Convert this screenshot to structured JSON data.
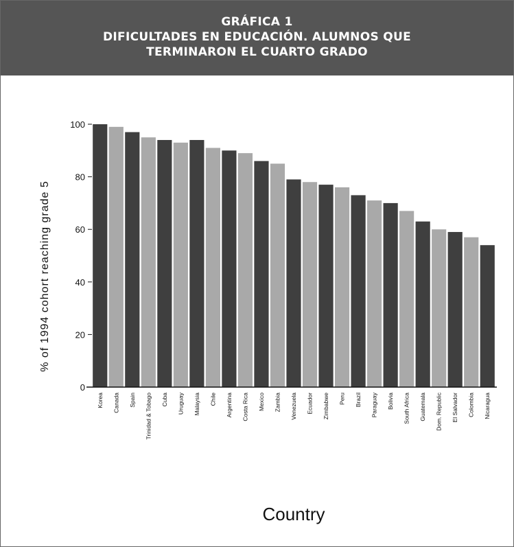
{
  "title_lines": [
    "GRÁFICA 1",
    "DIFICULTADES EN EDUCACIÓN. ALUMNOS QUE",
    "TERMINARON EL CUARTO GRADO"
  ],
  "colors": {
    "header_bg": "#555555",
    "bar_dark": "#3f3f3f",
    "bar_light": "#a9a9a9"
  },
  "chart_data": {
    "type": "bar",
    "title": "GRÁFICA 1 DIFICULTADES EN EDUCACIÓN. ALUMNOS QUE TERMINARON EL CUARTO GRADO",
    "xlabel": "Country",
    "ylabel": "% of 1994 cohort reaching grade 5",
    "ylim": [
      0,
      100
    ],
    "yticks": [
      0,
      20,
      40,
      60,
      80,
      100
    ],
    "grid": false,
    "categories": [
      "Korea",
      "Canada",
      "Spain",
      "Trinidad & Tobago",
      "Cuba",
      "Uruguay",
      "Malaysia",
      "Chile",
      "Argentina",
      "Costa Rica",
      "Mexico",
      "Zambia",
      "Venezuela",
      "Ecuador",
      "Zimbabwe",
      "Peru",
      "Brazil",
      "Paraguay",
      "Bolivia",
      "South Africa",
      "Guatemala",
      "Dom. Republic",
      "El Salvador",
      "Colombia",
      "Nicaragua"
    ],
    "values": [
      100,
      99,
      97,
      95,
      94,
      93,
      94,
      91,
      90,
      89,
      86,
      85,
      79,
      78,
      77,
      76,
      73,
      71,
      70,
      67,
      63,
      60,
      59,
      57,
      54
    ]
  }
}
